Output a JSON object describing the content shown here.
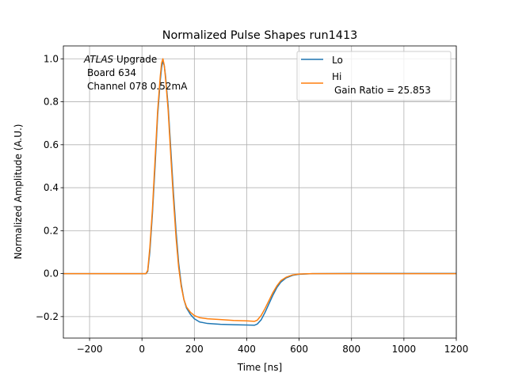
{
  "chart_data": {
    "type": "line",
    "title": "Normalized Pulse Shapes run1413",
    "xlabel": "Time [ns]",
    "ylabel": "Normalized Amplitude (A.U.)",
    "xlim": [
      -300,
      1200
    ],
    "ylim": [
      -0.3,
      1.06
    ],
    "grid": true,
    "legend_position": "top-right",
    "x_ticks": [
      -200,
      0,
      200,
      400,
      600,
      800,
      1000,
      1200
    ],
    "x_tick_labels": [
      "−200",
      "0",
      "200",
      "400",
      "600",
      "800",
      "1000",
      "1200"
    ],
    "y_ticks": [
      -0.2,
      0.0,
      0.2,
      0.4,
      0.6,
      0.8,
      1.0
    ],
    "y_tick_labels": [
      "−0.2",
      "0.0",
      "0.2",
      "0.4",
      "0.6",
      "0.8",
      "1.0"
    ],
    "annotation": {
      "atlas": "ATLAS",
      "line1_rest": " Upgrade",
      "line2": "Board 634",
      "line3": "Channel 078 0.52mA"
    },
    "legend": {
      "lo": "Lo",
      "hi_line1": "Hi",
      "hi_line2": "Gain Ratio = 25.853"
    },
    "series": [
      {
        "name": "Lo",
        "color": "#1f77b4",
        "points": [
          [
            -300,
            0.0
          ],
          [
            -100,
            0.0
          ],
          [
            0,
            0.0
          ],
          [
            15,
            0.0
          ],
          [
            22,
            0.01
          ],
          [
            30,
            0.1
          ],
          [
            40,
            0.28
          ],
          [
            50,
            0.5
          ],
          [
            60,
            0.74
          ],
          [
            70,
            0.9
          ],
          [
            75,
            0.96
          ],
          [
            80,
            0.99
          ],
          [
            85,
            0.97
          ],
          [
            90,
            0.92
          ],
          [
            100,
            0.78
          ],
          [
            110,
            0.58
          ],
          [
            120,
            0.38
          ],
          [
            130,
            0.2
          ],
          [
            140,
            0.05
          ],
          [
            150,
            -0.05
          ],
          [
            160,
            -0.12
          ],
          [
            170,
            -0.16
          ],
          [
            185,
            -0.19
          ],
          [
            200,
            -0.21
          ],
          [
            220,
            -0.225
          ],
          [
            250,
            -0.232
          ],
          [
            300,
            -0.236
          ],
          [
            350,
            -0.238
          ],
          [
            400,
            -0.239
          ],
          [
            430,
            -0.24
          ],
          [
            440,
            -0.235
          ],
          [
            455,
            -0.215
          ],
          [
            470,
            -0.18
          ],
          [
            485,
            -0.14
          ],
          [
            500,
            -0.1
          ],
          [
            515,
            -0.065
          ],
          [
            530,
            -0.04
          ],
          [
            550,
            -0.02
          ],
          [
            575,
            -0.008
          ],
          [
            600,
            -0.003
          ],
          [
            650,
            0.0
          ],
          [
            800,
            0.001
          ],
          [
            1000,
            0.001
          ],
          [
            1200,
            0.001
          ]
        ]
      },
      {
        "name": "Hi",
        "color": "#ff7f0e",
        "points": [
          [
            -300,
            0.0
          ],
          [
            -100,
            0.0
          ],
          [
            0,
            0.0
          ],
          [
            15,
            0.0
          ],
          [
            22,
            0.015
          ],
          [
            30,
            0.12
          ],
          [
            40,
            0.3
          ],
          [
            50,
            0.53
          ],
          [
            60,
            0.76
          ],
          [
            70,
            0.92
          ],
          [
            75,
            0.98
          ],
          [
            80,
            1.0
          ],
          [
            85,
            0.97
          ],
          [
            90,
            0.91
          ],
          [
            100,
            0.76
          ],
          [
            110,
            0.55
          ],
          [
            120,
            0.35
          ],
          [
            130,
            0.17
          ],
          [
            140,
            0.03
          ],
          [
            150,
            -0.06
          ],
          [
            160,
            -0.12
          ],
          [
            170,
            -0.155
          ],
          [
            185,
            -0.18
          ],
          [
            200,
            -0.195
          ],
          [
            220,
            -0.205
          ],
          [
            250,
            -0.21
          ],
          [
            300,
            -0.214
          ],
          [
            350,
            -0.218
          ],
          [
            400,
            -0.22
          ],
          [
            430,
            -0.222
          ],
          [
            440,
            -0.217
          ],
          [
            455,
            -0.195
          ],
          [
            470,
            -0.162
          ],
          [
            485,
            -0.125
          ],
          [
            500,
            -0.088
          ],
          [
            515,
            -0.057
          ],
          [
            530,
            -0.033
          ],
          [
            550,
            -0.017
          ],
          [
            575,
            -0.006
          ],
          [
            600,
            -0.002
          ],
          [
            650,
            0.0
          ],
          [
            800,
            0.0
          ],
          [
            1000,
            0.0
          ],
          [
            1200,
            0.0
          ]
        ]
      }
    ]
  }
}
